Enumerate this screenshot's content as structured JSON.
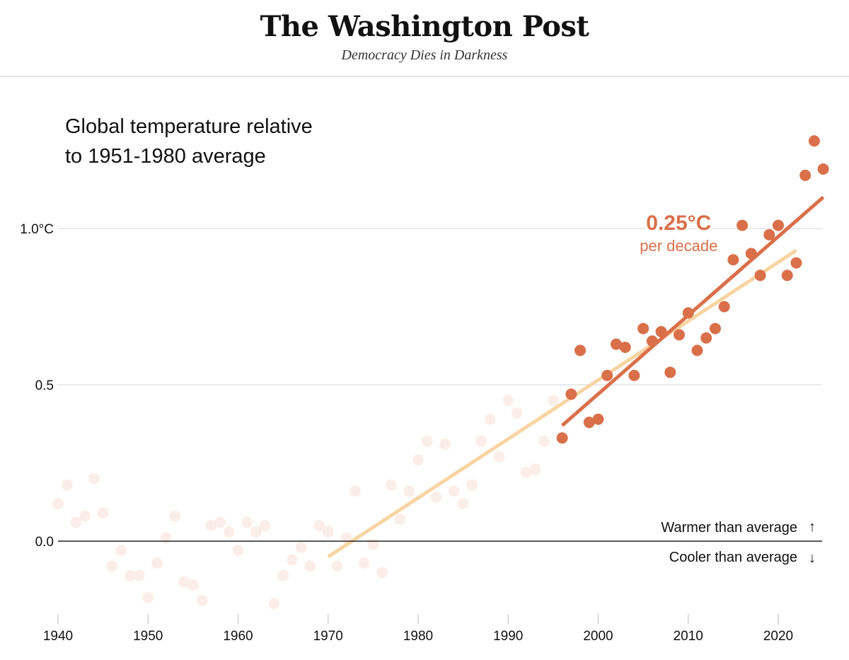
{
  "masthead": {
    "title": "The Washington Post",
    "tagline": "Democracy Dies in Darkness"
  },
  "chart_data": {
    "type": "scatter",
    "title": "Global temperature relative to 1951-1980 average",
    "title_lines": [
      "Global temperature relative",
      "to 1951-1980 average"
    ],
    "xlabel": "",
    "ylabel": "",
    "xlim": [
      1940,
      2025
    ],
    "ylim": [
      -0.22,
      1.3
    ],
    "grid": true,
    "x_ticks": [
      1940,
      1950,
      1960,
      1970,
      1980,
      1990,
      2000,
      2010,
      2020
    ],
    "x_tick_labels": [
      "1940",
      "1950",
      "1960",
      "1970",
      "1980",
      "1990",
      "2000",
      "2010",
      "2020"
    ],
    "y_ticks": [
      0.0,
      0.5,
      1.0
    ],
    "y_tick_labels": [
      "0.0",
      "0.5",
      "1.0°C"
    ],
    "colors": {
      "highlight": "#d9704a",
      "faded": "#fbece6",
      "long_trend": "#f7cf98",
      "recent_trend": "#d9704a",
      "gridline": "#dddddd",
      "baseline": "#222222"
    },
    "series": [
      {
        "name": "Earlier years (faded)",
        "x": [
          1940,
          1941,
          1942,
          1943,
          1944,
          1945,
          1946,
          1947,
          1948,
          1949,
          1950,
          1951,
          1952,
          1953,
          1954,
          1955,
          1956,
          1957,
          1958,
          1959,
          1960,
          1961,
          1962,
          1963,
          1964,
          1965,
          1966,
          1967,
          1968,
          1969,
          1970,
          1971,
          1972,
          1973,
          1974,
          1975,
          1976,
          1977,
          1978,
          1979,
          1980,
          1981,
          1982,
          1983,
          1984,
          1985,
          1986,
          1987,
          1988,
          1989,
          1990,
          1991,
          1992,
          1993,
          1994,
          1995
        ],
        "y": [
          0.12,
          0.18,
          0.06,
          0.08,
          0.2,
          0.09,
          -0.08,
          -0.03,
          -0.11,
          -0.11,
          -0.18,
          -0.07,
          0.01,
          0.08,
          -0.13,
          -0.14,
          -0.19,
          0.05,
          0.06,
          0.03,
          -0.03,
          0.06,
          0.03,
          0.05,
          -0.2,
          -0.11,
          -0.06,
          -0.02,
          -0.08,
          0.05,
          0.03,
          -0.08,
          0.01,
          0.16,
          -0.07,
          -0.01,
          -0.1,
          0.18,
          0.07,
          0.16,
          0.26,
          0.32,
          0.14,
          0.31,
          0.16,
          0.12,
          0.18,
          0.32,
          0.39,
          0.27,
          0.45,
          0.41,
          0.22,
          0.23,
          0.32,
          0.45
        ]
      },
      {
        "name": "Recent years (highlighted)",
        "x": [
          1996,
          1997,
          1998,
          1999,
          2000,
          2001,
          2002,
          2003,
          2004,
          2005,
          2006,
          2007,
          2008,
          2009,
          2010,
          2011,
          2012,
          2013,
          2014,
          2015,
          2016,
          2017,
          2018,
          2019,
          2020,
          2021,
          2022,
          2023,
          2024,
          2025
        ],
        "y": [
          0.33,
          0.47,
          0.61,
          0.38,
          0.39,
          0.53,
          0.63,
          0.62,
          0.53,
          0.68,
          0.64,
          0.67,
          0.54,
          0.66,
          0.73,
          0.61,
          0.65,
          0.68,
          0.75,
          0.9,
          1.01,
          0.92,
          0.85,
          0.98,
          1.01,
          0.85,
          0.89,
          1.17,
          1.28,
          1.19
        ]
      }
    ],
    "trend_lines": [
      {
        "name": "Long-term trend",
        "x": [
          1970,
          2022
        ],
        "y": [
          -0.05,
          0.93
        ]
      },
      {
        "name": "Recent trend",
        "x": [
          1996,
          2025
        ],
        "y": [
          0.37,
          1.1
        ]
      }
    ],
    "annotations": {
      "rate_value": "0.25°C",
      "rate_unit": "per decade",
      "rate_anchor": {
        "x": 2008,
        "y": 1.0
      },
      "warmer": "Warmer than average",
      "warmer_icon": "↑",
      "cooler": "Cooler than average",
      "cooler_icon": "↓"
    }
  }
}
